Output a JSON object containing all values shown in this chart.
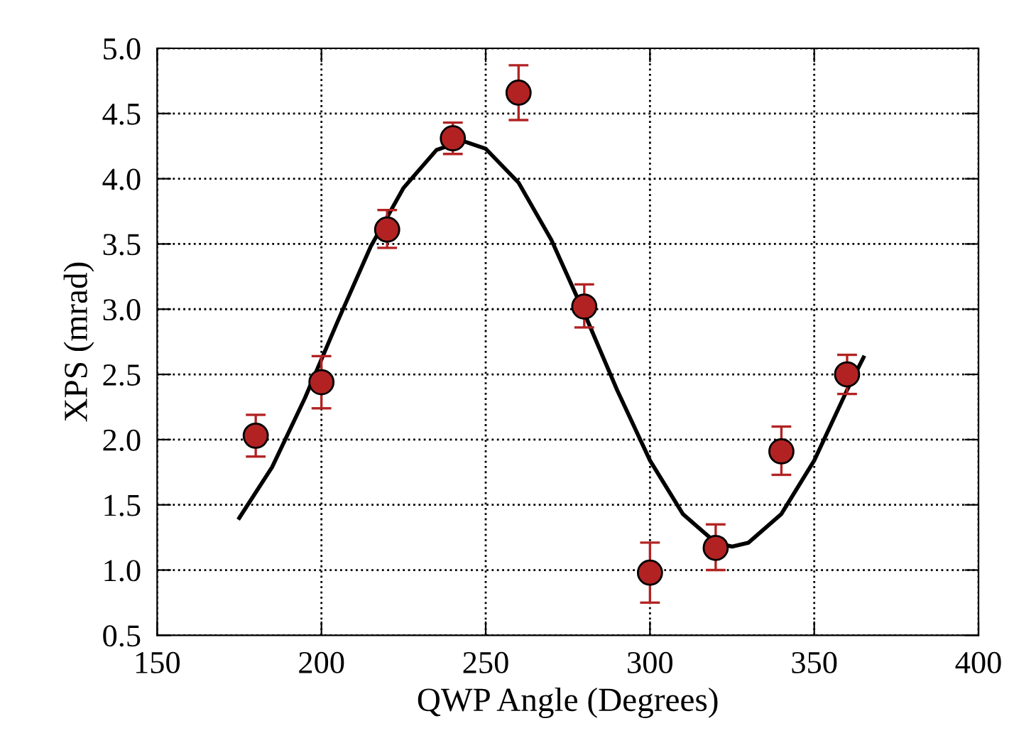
{
  "chart_data": {
    "type": "scatter",
    "xlabel": "QWP Angle (Degrees)",
    "ylabel": "XPS (mrad)",
    "xlim": [
      150,
      400
    ],
    "xticks": [
      150,
      200,
      250,
      300,
      350,
      400
    ],
    "ylim": [
      0.5,
      5.0
    ],
    "yticks": [
      {
        "value": 0.5,
        "label": "0.5"
      },
      {
        "value": 1.0,
        "label": "1.0"
      },
      {
        "value": 1.5,
        "label": "1.5"
      },
      {
        "value": 2.0,
        "label": "2.0"
      },
      {
        "value": 2.5,
        "label": "2.5"
      },
      {
        "value": 3.0,
        "label": "3.0"
      },
      {
        "value": 3.5,
        "label": "3.5"
      },
      {
        "value": 4.0,
        "label": "4.0"
      },
      {
        "value": 4.5,
        "label": "4.5"
      },
      {
        "value": 5.0,
        "label": "5.0"
      }
    ],
    "grid": true,
    "series": [
      {
        "color": "#b22222",
        "marker": "circle",
        "x": [
          180,
          200,
          220,
          240,
          260,
          280,
          300,
          320,
          340,
          360
        ],
        "values": [
          2.03,
          2.44,
          3.61,
          4.31,
          4.66,
          3.02,
          0.98,
          1.17,
          1.91,
          2.5
        ],
        "errors": [
          [
            1.87,
            2.19
          ],
          [
            2.24,
            2.64
          ],
          [
            3.47,
            3.76
          ],
          [
            4.19,
            4.43
          ],
          [
            4.45,
            4.87
          ],
          [
            2.86,
            3.19
          ],
          [
            0.75,
            1.21
          ],
          [
            1.0,
            1.35
          ],
          [
            1.73,
            2.1
          ],
          [
            2.35,
            2.65
          ]
        ]
      },
      {
        "type": "line",
        "color": "#000000",
        "marker": "none",
        "line_style": "solid",
        "x": [
          175,
          185,
          195,
          205,
          215,
          225,
          235,
          243,
          250,
          260,
          270,
          280,
          290,
          300,
          310,
          320,
          325,
          330,
          340,
          350,
          360,
          365
        ],
        "values": [
          1.4,
          1.79,
          2.32,
          2.91,
          3.48,
          3.93,
          4.22,
          4.29,
          4.23,
          3.97,
          3.53,
          2.97,
          2.38,
          1.84,
          1.43,
          1.21,
          1.18,
          1.21,
          1.43,
          1.84,
          2.38,
          2.63
        ]
      }
    ]
  }
}
